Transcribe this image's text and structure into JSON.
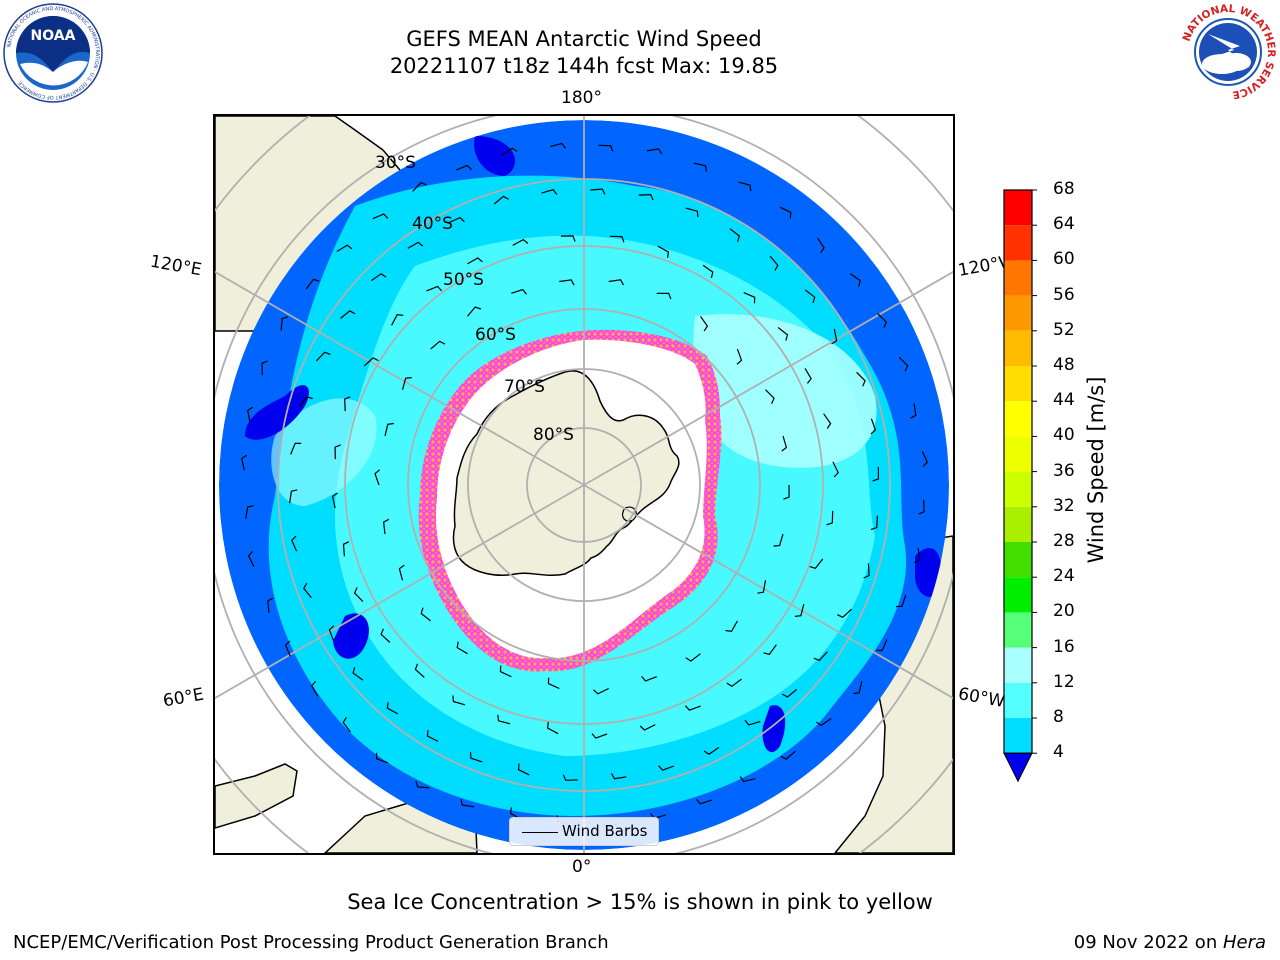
{
  "title": {
    "line1": "GEFS MEAN Antarctic Wind Speed",
    "line2": "20221107 t18z 144h fcst   Max: 19.85"
  },
  "logos": {
    "noaa_text": "NOAA",
    "noaa_ring_text": "NATIONAL OCEANIC AND ATMOSPHERIC ADMINISTRATION · U.S. DEPARTMENT OF COMMERCE",
    "nws_ring_text": "NATIONAL WEATHER SERVICE"
  },
  "map": {
    "projection": "south polar stereographic",
    "lon_labels": {
      "top": "180°",
      "bottom": "0°",
      "upper_left": "120°E",
      "upper_right": "120°W",
      "lower_left": "60°E",
      "lower_right": "60°W"
    },
    "lat_labels": [
      "30°S",
      "40°S",
      "50°S",
      "60°S",
      "70°S",
      "80°S"
    ],
    "legend_label": "Wind Barbs"
  },
  "colorbar": {
    "label": "Wind Speed [m/s]",
    "ticks": [
      "4",
      "8",
      "12",
      "16",
      "20",
      "24",
      "28",
      "32",
      "36",
      "40",
      "44",
      "48",
      "52",
      "56",
      "60",
      "64",
      "68"
    ],
    "colors": [
      "#0066ff",
      "#00ddff",
      "#55ffff",
      "#aaffff",
      "#55ff77",
      "#00ee00",
      "#44dd00",
      "#aaee00",
      "#ccff00",
      "#eeff00",
      "#ffff00",
      "#ffdd00",
      "#ffbb00",
      "#ff9900",
      "#ff7700",
      "#ff3300",
      "#ff0000"
    ],
    "under_color": "#0000ee"
  },
  "colors": {
    "land": "#efefdb",
    "sea_ice_low": "#ff33dd",
    "sea_ice_high": "#ffcc33",
    "grid": "#b0b0b0"
  },
  "notes": {
    "sea_ice": "Sea Ice Concentration > 15% is shown in pink to yellow"
  },
  "footer": {
    "left": "NCEP/EMC/Verification Post Processing Product Generation Branch",
    "date": "09 Nov 2022 on ",
    "machine": "Hera"
  }
}
